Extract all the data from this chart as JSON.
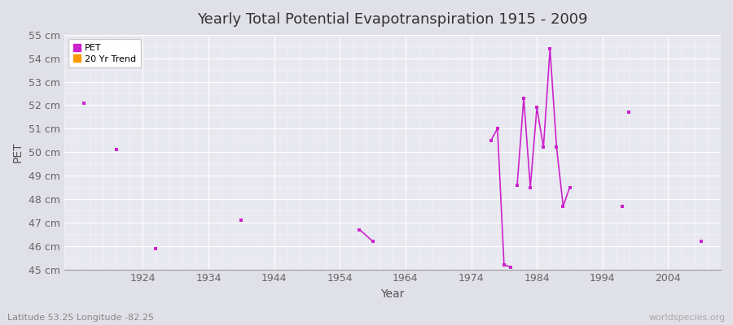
{
  "title": "Yearly Total Potential Evapotranspiration 1915 - 2009",
  "xlabel": "Year",
  "ylabel": "PET",
  "subtitle": "Latitude 53.25 Longitude -82.25",
  "watermark": "worldspecies.org",
  "ylim": [
    45,
    55
  ],
  "xlim": [
    1912,
    2012
  ],
  "ytick_labels": [
    "45 cm",
    "46 cm",
    "47 cm",
    "48 cm",
    "49 cm",
    "50 cm",
    "51 cm",
    "52 cm",
    "53 cm",
    "54 cm",
    "55 cm"
  ],
  "ytick_values": [
    45,
    46,
    47,
    48,
    49,
    50,
    51,
    52,
    53,
    54,
    55
  ],
  "xtick_values": [
    1924,
    1934,
    1944,
    1954,
    1964,
    1974,
    1984,
    1994,
    2004
  ],
  "background_color": "#e0e0e8",
  "plot_bg_color": "#e8e8f0",
  "grid_color": "#ffffff",
  "pet_color": "#cc22cc",
  "trend_color": "#ff9900",
  "isolated_points": [
    [
      1915,
      52.1
    ],
    [
      1920,
      50.1
    ],
    [
      1926,
      45.9
    ],
    [
      1939,
      47.1
    ],
    [
      1998,
      51.7
    ],
    [
      1997,
      47.7
    ],
    [
      2009,
      46.2
    ]
  ],
  "connected_segments": [
    {
      "x": [
        1957,
        1959
      ],
      "y": [
        46.7,
        46.2
      ]
    },
    {
      "x": [
        1977,
        1978,
        1979,
        1980
      ],
      "y": [
        50.5,
        51.0,
        45.2,
        45.1
      ]
    },
    {
      "x": [
        1981,
        1982,
        1983,
        1984,
        1985,
        1986,
        1987,
        1988,
        1989
      ],
      "y": [
        48.6,
        52.3,
        48.5,
        51.9,
        50.2,
        54.4,
        50.2,
        47.7,
        48.5
      ]
    }
  ]
}
